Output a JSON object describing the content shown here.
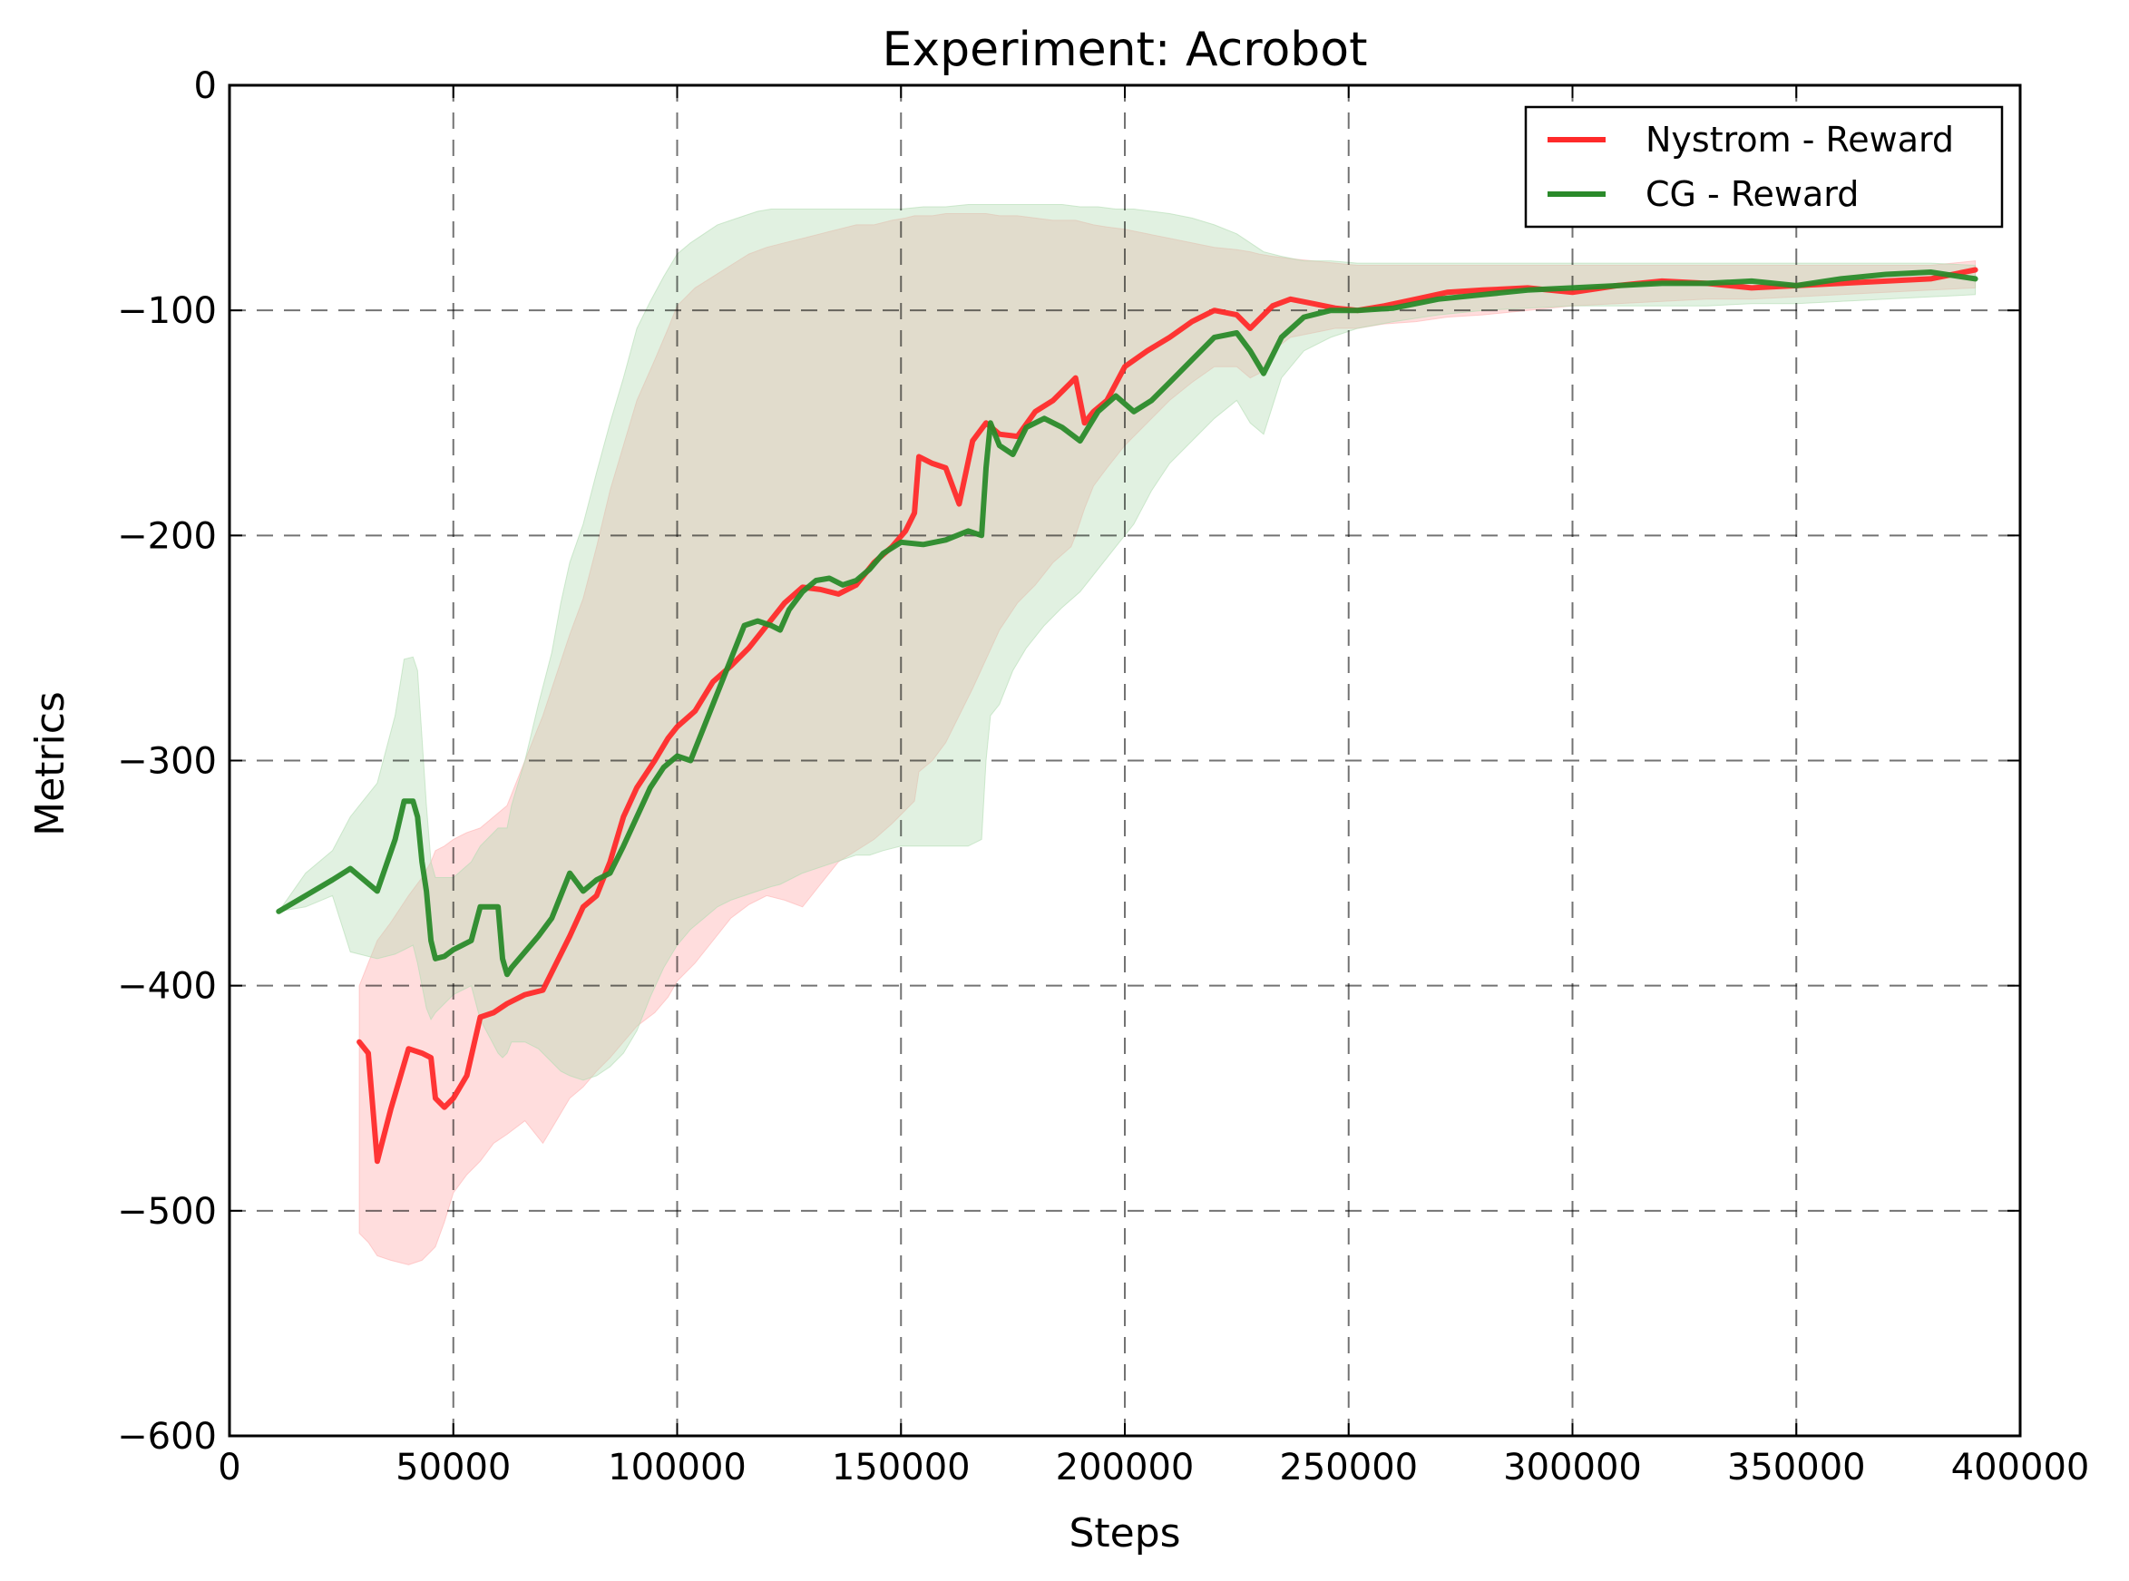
{
  "chart_data": {
    "type": "line",
    "title": "Experiment: Acrobot",
    "xlabel": "Steps",
    "ylabel": "Metrics",
    "xlim": [
      0,
      400000
    ],
    "ylim": [
      -600,
      0
    ],
    "xticks": [
      0,
      50000,
      100000,
      150000,
      200000,
      250000,
      300000,
      350000,
      400000
    ],
    "yticks": [
      -600,
      -500,
      -400,
      -300,
      -200,
      -100,
      0
    ],
    "grid": true,
    "legend_position": "top-right",
    "series": [
      {
        "name": "Nystrom - Reward",
        "color": "#ff2a2a",
        "band_color": "#ffb3b3",
        "x": [
          29000,
          31000,
          33000,
          36000,
          40000,
          43000,
          45000,
          46000,
          48000,
          50000,
          53000,
          56000,
          59000,
          62000,
          66000,
          70000,
          73000,
          76000,
          79000,
          82000,
          85000,
          88000,
          91000,
          95000,
          98000,
          100000,
          104000,
          108000,
          112000,
          116000,
          120000,
          124000,
          128000,
          132000,
          136000,
          140000,
          144000,
          148000,
          151000,
          153000,
          154000,
          157000,
          160000,
          163000,
          166000,
          169000,
          172000,
          176000,
          180000,
          184000,
          188000,
          189000,
          191000,
          193000,
          196000,
          200000,
          205000,
          210000,
          215000,
          220000,
          225000,
          228000,
          230000,
          233000,
          237000,
          242000,
          247000,
          252000,
          258000,
          265000,
          272000,
          280000,
          290000,
          300000,
          310000,
          320000,
          330000,
          340000,
          350000,
          360000,
          370000,
          380000,
          390000
        ],
        "y": [
          -425,
          -430,
          -478,
          -455,
          -428,
          -430,
          -432,
          -450,
          -454,
          -450,
          -440,
          -414,
          -412,
          -408,
          -404,
          -402,
          -390,
          -378,
          -365,
          -360,
          -345,
          -325,
          -312,
          -300,
          -290,
          -285,
          -278,
          -265,
          -258,
          -250,
          -240,
          -230,
          -223,
          -224,
          -226,
          -222,
          -212,
          -205,
          -198,
          -190,
          -165,
          -168,
          -170,
          -186,
          -158,
          -150,
          -155,
          -156,
          -145,
          -140,
          -132,
          -130,
          -150,
          -145,
          -140,
          -125,
          -118,
          -112,
          -105,
          -100,
          -102,
          -108,
          -104,
          -98,
          -95,
          -97,
          -99,
          -100,
          -98,
          -95,
          -92,
          -91,
          -90,
          -92,
          -89,
          -87,
          -88,
          -90,
          -89,
          -88,
          -87,
          -86,
          -82
        ],
        "lower": [
          -510,
          -514,
          -520,
          -522,
          -524,
          -522,
          -518,
          -516,
          -505,
          -492,
          -484,
          -478,
          -470,
          -466,
          -460,
          -470,
          -460,
          -450,
          -445,
          -438,
          -432,
          -425,
          -418,
          -412,
          -405,
          -398,
          -390,
          -380,
          -370,
          -364,
          -360,
          -362,
          -365,
          -355,
          -345,
          -340,
          -335,
          -328,
          -322,
          -318,
          -305,
          -300,
          -292,
          -280,
          -268,
          -255,
          -242,
          -230,
          -222,
          -212,
          -205,
          -200,
          -188,
          -178,
          -170,
          -160,
          -150,
          -140,
          -132,
          -125,
          -125,
          -130,
          -128,
          -118,
          -112,
          -110,
          -108,
          -108,
          -106,
          -105,
          -103,
          -102,
          -100,
          -98,
          -97,
          -96,
          -95,
          -95,
          -94,
          -93,
          -92,
          -91,
          -90
        ],
        "upper": [
          -400,
          -390,
          -380,
          -372,
          -360,
          -352,
          -345,
          -340,
          -338,
          -335,
          -332,
          -330,
          -325,
          -320,
          -300,
          -280,
          -262,
          -244,
          -228,
          -205,
          -180,
          -160,
          -140,
          -122,
          -108,
          -98,
          -90,
          -85,
          -80,
          -75,
          -72,
          -70,
          -68,
          -66,
          -64,
          -62,
          -62,
          -60,
          -59,
          -58,
          -58,
          -58,
          -57,
          -57,
          -57,
          -57,
          -58,
          -58,
          -59,
          -60,
          -60,
          -60,
          -61,
          -62,
          -63,
          -64,
          -66,
          -68,
          -70,
          -72,
          -73,
          -74,
          -75,
          -76,
          -77,
          -78,
          -79,
          -80,
          -80,
          -80,
          -80,
          -80,
          -80,
          -80,
          -80,
          -80,
          -80,
          -80,
          -80,
          -80,
          -80,
          -80,
          -78
        ]
      },
      {
        "name": "CG - Reward",
        "color": "#2a8a2a",
        "band_color": "#b3dcb3",
        "x": [
          11000,
          17000,
          23000,
          27000,
          33000,
          37000,
          39000,
          41000,
          42000,
          43000,
          44000,
          45000,
          46000,
          48000,
          50000,
          54000,
          56000,
          60000,
          61000,
          62000,
          63000,
          66000,
          69000,
          72000,
          74000,
          76000,
          79000,
          82000,
          85000,
          88000,
          91000,
          94000,
          97000,
          100000,
          103000,
          106000,
          109000,
          112000,
          115000,
          118000,
          121000,
          123000,
          125000,
          128000,
          131000,
          134000,
          137000,
          140000,
          143000,
          146000,
          150000,
          155000,
          160000,
          165000,
          168000,
          169000,
          170000,
          172000,
          175000,
          178000,
          182000,
          186000,
          190000,
          194000,
          198000,
          202000,
          206000,
          210000,
          215000,
          220000,
          225000,
          228000,
          231000,
          235000,
          240000,
          246000,
          252000,
          260000,
          270000,
          280000,
          290000,
          300000,
          310000,
          320000,
          330000,
          340000,
          350000,
          360000,
          370000,
          380000,
          390000
        ],
        "y": [
          -367,
          -360,
          -353,
          -348,
          -358,
          -335,
          -318,
          -318,
          -325,
          -345,
          -358,
          -380,
          -388,
          -387,
          -384,
          -380,
          -365,
          -365,
          -388,
          -395,
          -392,
          -385,
          -378,
          -370,
          -360,
          -350,
          -358,
          -353,
          -350,
          -338,
          -325,
          -312,
          -303,
          -298,
          -300,
          -285,
          -270,
          -255,
          -240,
          -238,
          -240,
          -242,
          -233,
          -225,
          -220,
          -219,
          -222,
          -220,
          -215,
          -208,
          -203,
          -204,
          -202,
          -198,
          -200,
          -170,
          -150,
          -160,
          -164,
          -152,
          -148,
          -152,
          -158,
          -145,
          -138,
          -145,
          -140,
          -132,
          -122,
          -112,
          -110,
          -118,
          -128,
          -112,
          -103,
          -100,
          -100,
          -99,
          -95,
          -93,
          -91,
          -90,
          -89,
          -88,
          -88,
          -87,
          -89,
          -86,
          -84,
          -83,
          -86
        ],
        "lower": [
          -367,
          -365,
          -360,
          -385,
          -388,
          -386,
          -384,
          -382,
          -390,
          -400,
          -410,
          -415,
          -412,
          -408,
          -404,
          -400,
          -415,
          -430,
          -432,
          -430,
          -425,
          -425,
          -428,
          -434,
          -438,
          -440,
          -442,
          -440,
          -436,
          -430,
          -420,
          -405,
          -392,
          -382,
          -375,
          -370,
          -365,
          -362,
          -360,
          -358,
          -356,
          -355,
          -353,
          -350,
          -348,
          -346,
          -344,
          -342,
          -342,
          -340,
          -338,
          -338,
          -338,
          -338,
          -335,
          -300,
          -280,
          -275,
          -260,
          -250,
          -240,
          -232,
          -225,
          -215,
          -205,
          -195,
          -180,
          -168,
          -158,
          -148,
          -140,
          -150,
          -155,
          -130,
          -118,
          -112,
          -108,
          -105,
          -102,
          -100,
          -99,
          -98,
          -98,
          -98,
          -98,
          -97,
          -97,
          -96,
          -95,
          -94,
          -93
        ],
        "upper": [
          -367,
          -350,
          -340,
          -325,
          -310,
          -280,
          -255,
          -254,
          -260,
          -290,
          -320,
          -345,
          -352,
          -352,
          -352,
          -345,
          -338,
          -330,
          -330,
          -330,
          -320,
          -300,
          -275,
          -252,
          -230,
          -212,
          -195,
          -172,
          -150,
          -130,
          -108,
          -96,
          -85,
          -75,
          -70,
          -66,
          -62,
          -60,
          -58,
          -56,
          -55,
          -55,
          -55,
          -55,
          -55,
          -55,
          -55,
          -55,
          -55,
          -55,
          -55,
          -54,
          -54,
          -53,
          -53,
          -53,
          -53,
          -53,
          -53,
          -53,
          -53,
          -53,
          -54,
          -54,
          -55,
          -55,
          -56,
          -57,
          -59,
          -62,
          -66,
          -70,
          -74,
          -76,
          -78,
          -78,
          -79,
          -79,
          -79,
          -79,
          -79,
          -79,
          -79,
          -79,
          -79,
          -79,
          -79,
          -79,
          -79,
          -79,
          -80
        ]
      }
    ]
  }
}
